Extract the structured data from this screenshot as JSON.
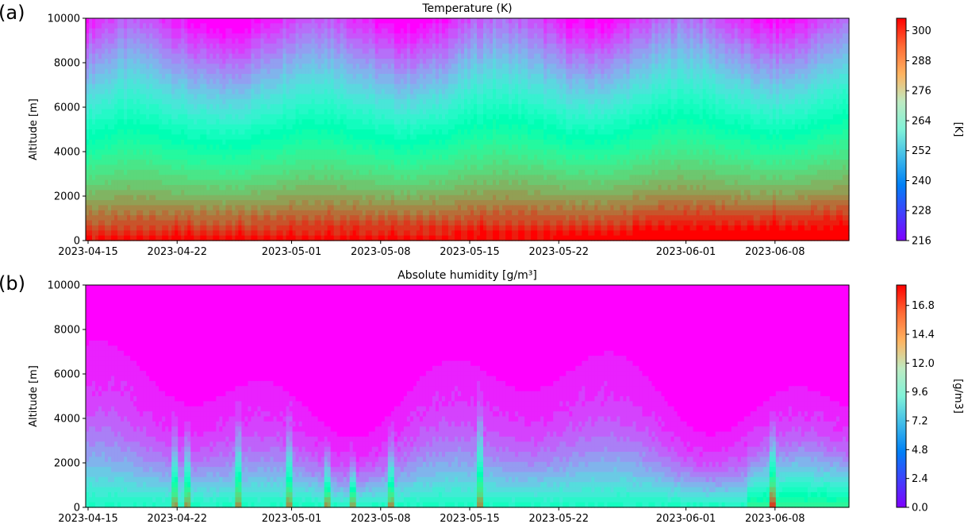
{
  "panels": [
    {
      "panel_label": "(a)",
      "title": "Temperature (K)",
      "ylabel": "Altitude [m]",
      "yticks": [
        "0",
        "2000",
        "4000",
        "6000",
        "8000",
        "10000"
      ],
      "xticks": [
        "2023-04-15",
        "2023-04-22",
        "2023-05-01",
        "2023-05-08",
        "2023-05-15",
        "2023-05-22",
        "2023-06-01",
        "2023-06-08"
      ],
      "colorbar": {
        "label": "[K]",
        "ticks": [
          "216",
          "228",
          "240",
          "252",
          "264",
          "276",
          "288",
          "300"
        ]
      }
    },
    {
      "panel_label": "(b)",
      "title": "Absolute humidity [g/m³]",
      "ylabel": "Altitude [m]",
      "yticks": [
        "0",
        "2000",
        "4000",
        "6000",
        "8000",
        "10000"
      ],
      "xticks": [
        "2023-04-15",
        "2023-04-22",
        "2023-05-01",
        "2023-05-08",
        "2023-05-15",
        "2023-05-22",
        "2023-06-01",
        "2023-06-08"
      ],
      "colorbar": {
        "label": "[g/m3]",
        "ticks": [
          "0.0",
          "2.4",
          "4.8",
          "7.2",
          "9.6",
          "12.0",
          "14.4",
          "16.8"
        ]
      }
    }
  ],
  "chart_data": [
    {
      "type": "heatmap",
      "title": "Temperature (K)",
      "xlabel": "",
      "ylabel": "Altitude [m]",
      "x_range": [
        "2023-04-15",
        "2023-06-14"
      ],
      "ylim": [
        0,
        10000
      ],
      "colormap": "rainbow",
      "color_range": [
        216,
        305
      ],
      "colorbar_label": "[K]",
      "colorbar_ticks": [
        216,
        228,
        240,
        252,
        264,
        276,
        288,
        300
      ],
      "surface_range": [
        282,
        300
      ],
      "top_range": [
        216,
        222
      ],
      "diurnal_cycle_near_surface": true,
      "warmest_periods": [
        "2023-05-28 to 2023-06-14"
      ]
    },
    {
      "type": "heatmap",
      "title": "Absolute humidity [g/m³]",
      "xlabel": "",
      "ylabel": "Altitude [m]",
      "x_range": [
        "2023-04-15",
        "2023-06-14"
      ],
      "ylim": [
        0,
        10000
      ],
      "colormap": "rainbow",
      "color_range": [
        0,
        18.5
      ],
      "colorbar_label": "[g/m3]",
      "colorbar_ticks": [
        0.0,
        2.4,
        4.8,
        7.2,
        9.6,
        12.0,
        14.4,
        16.8
      ],
      "moist_layer_top_range": [
        3000,
        7500
      ],
      "peak_humidity_dates": [
        "2023-04-22",
        "2023-04-23",
        "2023-04-27",
        "2023-05-01",
        "2023-05-04",
        "2023-05-06",
        "2023-05-09",
        "2023-05-16",
        "2023-06-08"
      ]
    }
  ]
}
